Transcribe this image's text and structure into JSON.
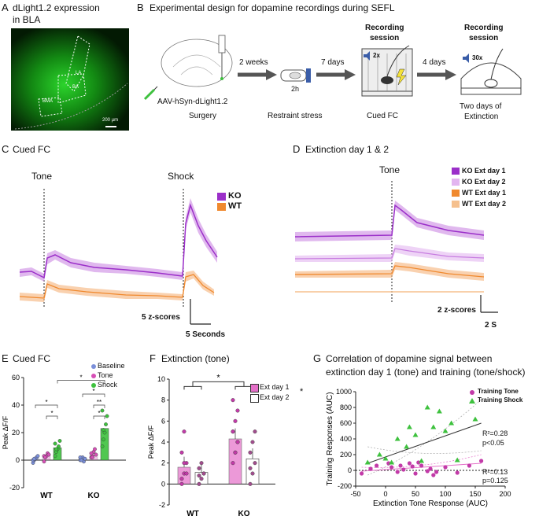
{
  "panelA": {
    "letter": "A",
    "title1": "dLight1.2 expression",
    "title2": "in BLA",
    "labels": [
      "LA",
      "BA",
      "BMA"
    ],
    "scale": "200 µm"
  },
  "panelB": {
    "letter": "B",
    "title": "Experimental design for dopamine recordings during SEFL",
    "arrow1": "2 weeks",
    "arrow2": "7 days",
    "arrow3": "4 days",
    "virus": "AAV-hSyn-dLight1.2",
    "surgery": "Surgery",
    "restraint_time": "2h",
    "restraint": "Restraint stress",
    "rec1_title1": "Recording",
    "rec1_title2": "session",
    "rec1_speaker": "2x",
    "cuedfc": "Cued FC",
    "rec2_title1": "Recording",
    "rec2_title2": "session",
    "rec2_speaker": "30x",
    "ext1": "Two days of",
    "ext2": "Extinction"
  },
  "panelC": {
    "letter": "C",
    "title": "Cued FC",
    "tone": "Tone",
    "shock": "Shock",
    "legend": [
      "KO",
      "WT"
    ],
    "scale_y": "5 z-scores",
    "scale_x": "5 Seconds"
  },
  "panelD": {
    "letter": "D",
    "title": "Extinction day 1 & 2",
    "tone": "Tone",
    "legend": [
      "KO Ext day 1",
      "KO Ext day 2",
      "WT Ext day 1",
      "WT Ext day 2"
    ],
    "scale_y": "2 z-scores",
    "scale_x": "2 S"
  },
  "colors": {
    "ko": "#9b2fc9",
    "ko_light": "#c77de0",
    "wt": "#f0892e",
    "wt_light": "#f5b27a",
    "green": "#3ec13e",
    "magenta": "#d64fb6",
    "blue": "#7b8fd9"
  },
  "chart_data": [
    {
      "panel": "E",
      "type": "bar",
      "title": "Cued FC",
      "ylabel": "Peak ΔF/F",
      "ylim": [
        -20,
        60
      ],
      "yticks": [
        -20,
        0,
        20,
        40,
        60
      ],
      "categories": [
        "WT",
        "KO"
      ],
      "series": [
        {
          "name": "Baseline",
          "values": [
            1,
            1
          ]
        },
        {
          "name": "Tone",
          "values": [
            3,
            4
          ]
        },
        {
          "name": "Shock",
          "values": [
            9,
            23
          ]
        }
      ],
      "significance": [
        "*",
        "*",
        "*",
        "*",
        "**",
        "*"
      ]
    },
    {
      "panel": "F",
      "type": "bar",
      "title": "Extinction (tone)",
      "ylabel": "Peak ΔF/F",
      "ylim": [
        -2,
        10
      ],
      "yticks": [
        -2,
        0,
        2,
        4,
        6,
        8,
        10
      ],
      "categories": [
        "WT",
        "KO"
      ],
      "series": [
        {
          "name": "Ext day 1",
          "values": [
            1.6,
            4.3
          ]
        },
        {
          "name": "Ext day 2",
          "values": [
            1.1,
            2.4
          ]
        }
      ],
      "significance": [
        "*",
        "*"
      ]
    },
    {
      "panel": "G",
      "type": "scatter",
      "title": "Correlation of dopamine signal between",
      "title2": "extinction day 1 (tone) and training (tone/shock)",
      "xlabel": "Extinction Tone Response (AUC)",
      "ylabel": "Training Responses (AUC)",
      "xlim": [
        -50,
        200
      ],
      "ylim": [
        -200,
        1000
      ],
      "xticks": [
        -50,
        0,
        50,
        100,
        150,
        200
      ],
      "yticks": [
        -200,
        0,
        200,
        400,
        600,
        800,
        1000
      ],
      "series": [
        {
          "name": "Training Tone",
          "x": [
            -40,
            -25,
            -15,
            5,
            10,
            20,
            25,
            30,
            40,
            45,
            50,
            55,
            60,
            70,
            75,
            80,
            85,
            100,
            120,
            140,
            160
          ],
          "y": [
            -40,
            20,
            60,
            90,
            40,
            -20,
            60,
            10,
            90,
            50,
            -40,
            100,
            60,
            -10,
            20,
            -60,
            -20,
            40,
            -30,
            60,
            120
          ]
        },
        {
          "name": "Training Shock",
          "x": [
            -30,
            -10,
            0,
            10,
            20,
            35,
            40,
            50,
            60,
            70,
            80,
            90,
            100,
            110,
            120,
            150
          ],
          "y": [
            100,
            200,
            150,
            100,
            400,
            300,
            550,
            450,
            120,
            800,
            550,
            750,
            500,
            600,
            130,
            650
          ]
        }
      ],
      "fits": [
        {
          "series": "Training Shock",
          "r2": "R²=0.28",
          "p": "p<0.05"
        },
        {
          "series": "Training Tone",
          "r2": "R²=0.13",
          "p": "p=0.125"
        }
      ]
    }
  ],
  "labelsE": {
    "letter": "E",
    "legend": [
      "Baseline",
      "Tone",
      "Shock"
    ]
  },
  "labelsF": {
    "letter": "F"
  },
  "labelsG": {
    "letter": "G"
  }
}
